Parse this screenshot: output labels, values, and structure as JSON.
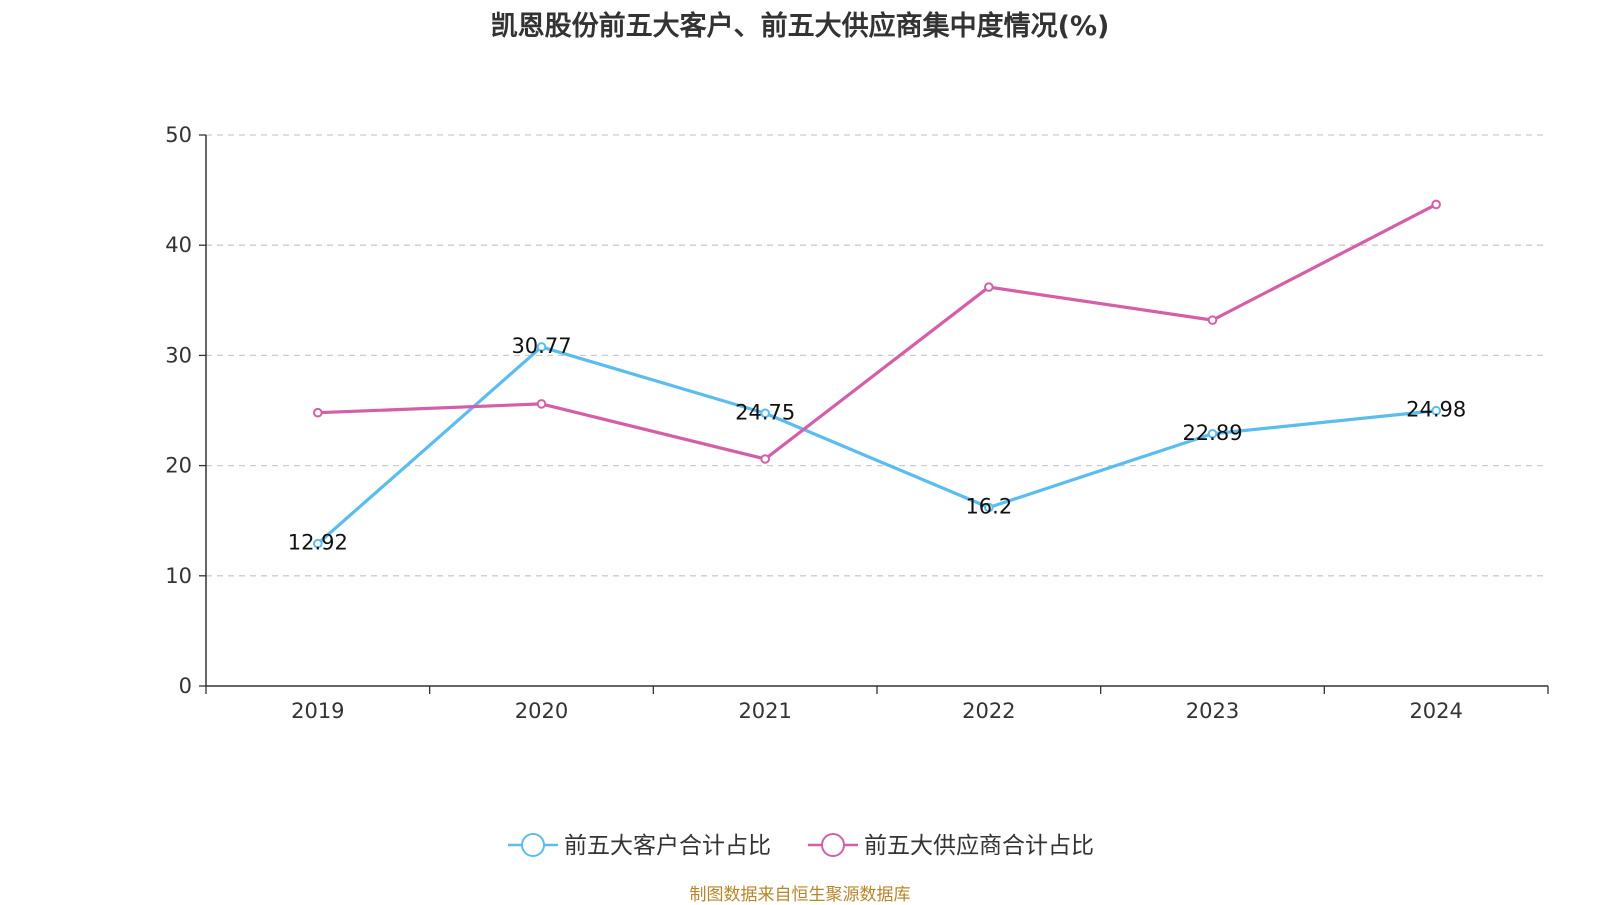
{
  "chart_data": {
    "type": "line",
    "title": "凯恩股份前五大客户、前五大供应商集中度情况(%)",
    "categories": [
      "2019",
      "2020",
      "2021",
      "2022",
      "2023",
      "2024"
    ],
    "series": [
      {
        "name": "前五大客户合计占比",
        "color": "#5bbcef",
        "values": [
          12.92,
          30.77,
          24.75,
          16.2,
          22.89,
          24.98
        ],
        "labels": [
          "12.92",
          "30.77",
          "24.75",
          "16.2",
          "22.89",
          "24.98"
        ]
      },
      {
        "name": "前五大供应商合计占比",
        "color": "#d45fa8",
        "values": [
          24.8,
          25.6,
          20.6,
          36.2,
          33.2,
          43.7
        ]
      }
    ],
    "ylim": [
      0,
      50
    ],
    "yticks": [
      "0",
      "10",
      "20",
      "30",
      "40",
      "50"
    ],
    "grid": true,
    "legend_position": "bottom",
    "source": "制图数据来自恒生聚源数据库"
  }
}
